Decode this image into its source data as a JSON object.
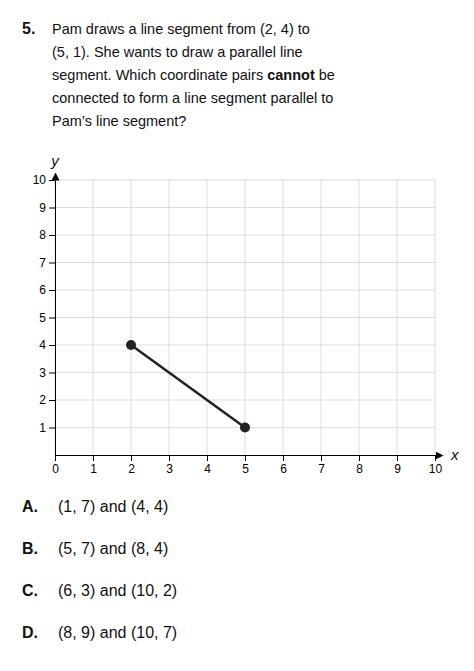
{
  "chart_data": {
    "type": "line",
    "title": "5.",
    "subtitle": [
      [
        "Pam draws a line segment from (2, 4) to"
      ],
      [
        "(5, 1). She wants to draw a parallel line"
      ],
      [
        "segment. Which coordinate pairs ",
        "cannot",
        " be"
      ],
      [
        "connected to form a line segment parallel to"
      ],
      [
        "Pam’s line segment?"
      ]
    ],
    "x_label": "x",
    "y_label": "y",
    "x": [
      2,
      5
    ],
    "values": [
      4,
      1
    ],
    "color": "#222222",
    "marker": "circle",
    "xlim": [
      0,
      10
    ],
    "ylim": [
      0,
      10
    ],
    "xticks": [
      0,
      1,
      2,
      3,
      4,
      5,
      6,
      7,
      8,
      9,
      10
    ],
    "yticks": [
      1,
      2,
      3,
      4,
      5,
      6,
      7,
      8,
      9,
      10
    ],
    "grid": true,
    "annotations": [
      {
        "label": "A.",
        "text": "(1, 7) and (4, 4)"
      },
      {
        "label": "B.",
        "text": "(5, 7) and (8, 4)"
      },
      {
        "label": "C.",
        "text": "(6, 3) and (10, 2)"
      },
      {
        "label": "D.",
        "text": "(8, 9) and (10, 7)"
      }
    ]
  }
}
